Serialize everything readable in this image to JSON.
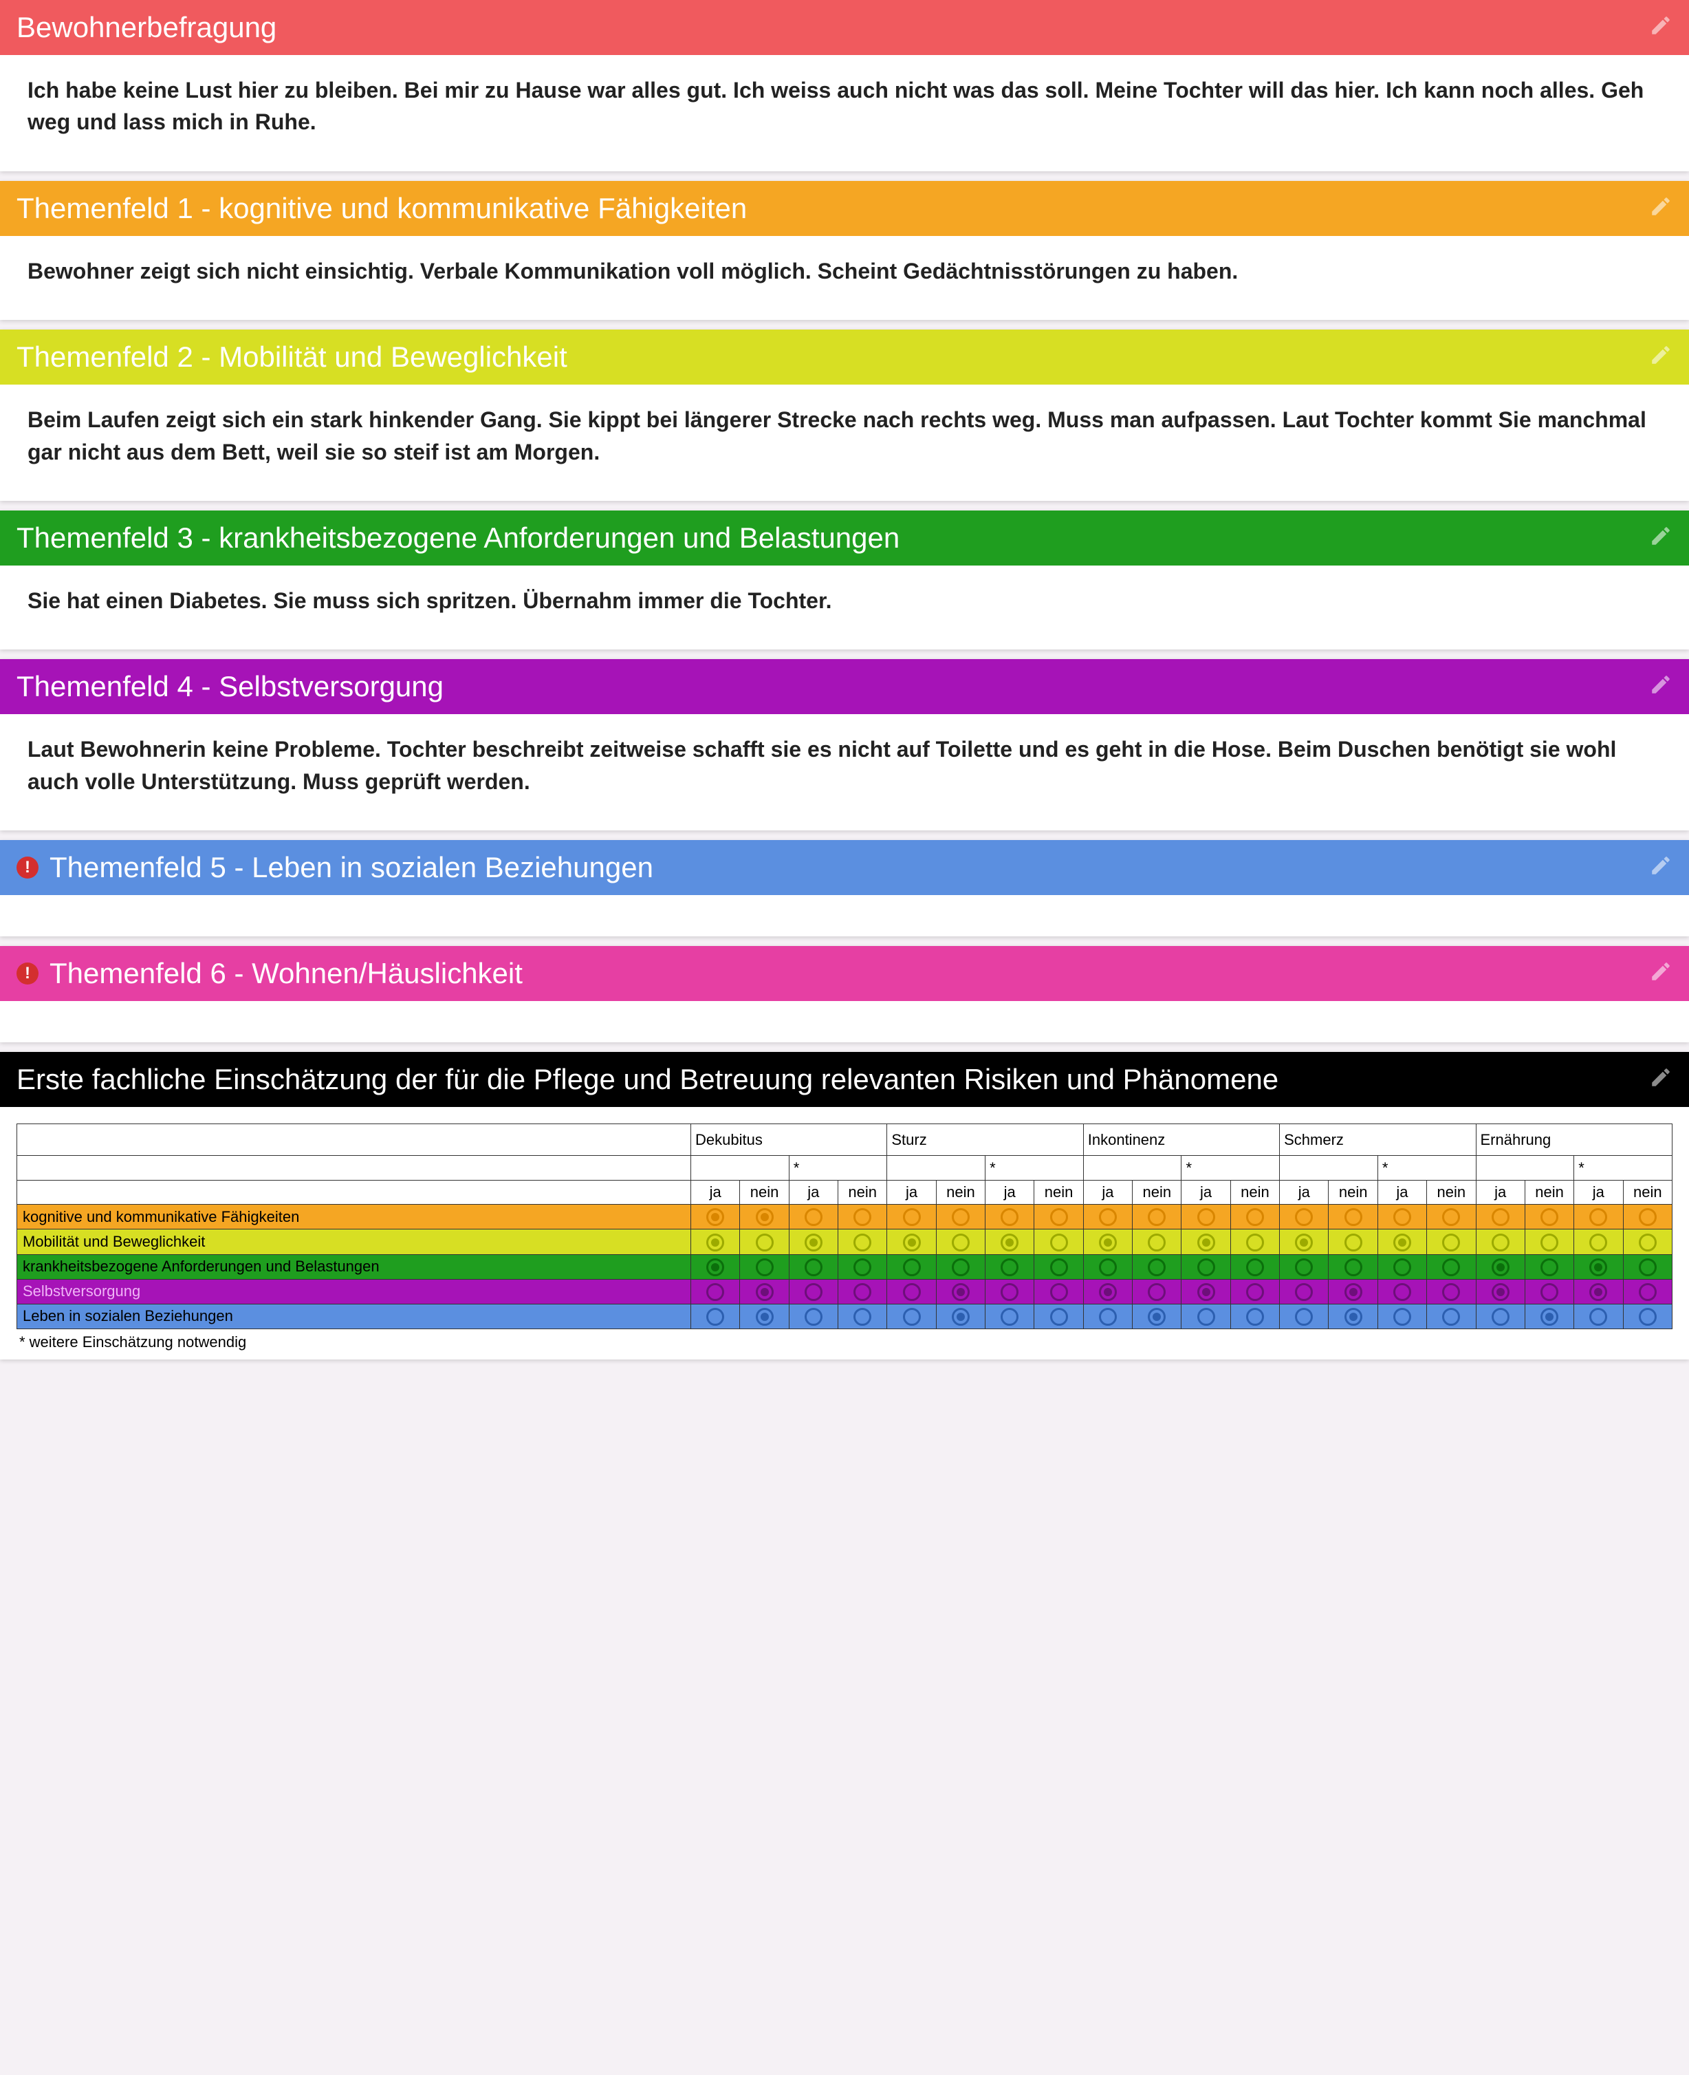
{
  "colors": {
    "page_bg": "#f5f1f5",
    "panel_bg": "#ffffff",
    "text": "#222222",
    "warn_badge": "#d32f2f",
    "edit_icon": "#ffffff"
  },
  "panels": [
    {
      "id": "survey",
      "title": "Bewohnerbefragung",
      "header_color": "#f05a5e",
      "has_warn": false,
      "body": "Ich habe keine Lust hier zu bleiben. Bei mir zu Hause war alles gut. Ich weiss auch nicht was das soll. Meine Tochter will das hier. Ich kann noch alles. Geh weg und lass mich in Ruhe."
    },
    {
      "id": "tf1",
      "title": "Themenfeld 1 - kognitive und kommunikative Fähigkeiten",
      "header_color": "#f5a623",
      "has_warn": false,
      "body": "Bewohner zeigt sich nicht einsichtig. Verbale Kommunikation voll möglich. Scheint Gedächtnisstörungen zu haben."
    },
    {
      "id": "tf2",
      "title": "Themenfeld 2 - Mobilität und Beweglichkeit",
      "header_color": "#d7df23",
      "has_warn": false,
      "body": "Beim Laufen zeigt sich ein stark hinkender Gang. Sie kippt bei längerer Strecke nach rechts weg. Muss man aufpassen. Laut Tochter kommt Sie manchmal gar nicht aus dem Bett, weil sie so steif ist am Morgen."
    },
    {
      "id": "tf3",
      "title": "Themenfeld 3 - krankheitsbezogene Anforderungen und Belastungen",
      "header_color": "#1f9e1f",
      "has_warn": false,
      "body": "Sie hat einen Diabetes. Sie muss sich spritzen. Übernahm immer die Tochter."
    },
    {
      "id": "tf4",
      "title": "Themenfeld 4 - Selbstversorgung",
      "header_color": "#a613b7",
      "has_warn": false,
      "body": "Laut Bewohnerin keine Probleme. Tochter beschreibt zeitweise schafft sie es nicht auf Toilette und es geht in die Hose. Beim Duschen benötigt sie wohl auch volle Unterstützung. Muss geprüft werden."
    },
    {
      "id": "tf5",
      "title": "Themenfeld 5 - Leben in sozialen Beziehungen",
      "header_color": "#5b8fe0",
      "has_warn": true,
      "body": ""
    },
    {
      "id": "tf6",
      "title": "Themenfeld 6 - Wohnen/Häuslichkeit",
      "header_color": "#e63fa3",
      "has_warn": true,
      "body": ""
    }
  ],
  "matrix_panel": {
    "title": "Erste fachliche Einschätzung der für die Pflege und Betreuung relevanten Risiken und Phänomene",
    "header_color": "#000000"
  },
  "matrix": {
    "groups": [
      "Dekubitus",
      "Sturz",
      "Inkontinenz",
      "Schmerz",
      "Ernährung"
    ],
    "sub_labels": [
      "",
      "*"
    ],
    "jn_labels": [
      "ja",
      "nein"
    ],
    "footnote": "* weitere Einschätzung notwendig",
    "rows": [
      {
        "label": "kognitive und kommunikative Fähigkeiten",
        "row_color": "#f5a623",
        "radio_color": "#d98600",
        "text_color": "#000000",
        "selections": [
          0,
          1,
          null,
          null,
          null,
          null,
          null,
          null,
          null,
          null,
          null,
          null,
          null,
          null,
          null,
          null,
          null,
          null,
          null,
          null
        ]
      },
      {
        "label": "Mobilität und Beweglichkeit",
        "row_color": "#d7df23",
        "radio_color": "#9caa00",
        "text_color": "#000000",
        "selections": [
          0,
          null,
          0,
          null,
          0,
          null,
          0,
          null,
          0,
          null,
          0,
          null,
          0,
          null,
          0,
          null,
          null,
          null,
          null,
          null
        ]
      },
      {
        "label": "krankheitsbezogene Anforderungen und Belastungen",
        "row_color": "#1f9e1f",
        "radio_color": "#0b6f0b",
        "text_color": "#000000",
        "selections": [
          0,
          null,
          null,
          null,
          null,
          null,
          null,
          null,
          null,
          null,
          null,
          null,
          null,
          null,
          null,
          null,
          0,
          null,
          0,
          null
        ]
      },
      {
        "label": "Selbstversorgung",
        "row_color": "#a613b7",
        "radio_color": "#6d0f7a",
        "text_color": "#f0b3f7",
        "selections": [
          null,
          0,
          null,
          null,
          null,
          0,
          null,
          null,
          0,
          null,
          0,
          null,
          null,
          0,
          null,
          null,
          0,
          null,
          0,
          null
        ]
      },
      {
        "label": "Leben in sozialen Beziehungen",
        "row_color": "#5b8fe0",
        "radio_color": "#2c5fb0",
        "text_color": "#000000",
        "selections": [
          null,
          0,
          null,
          null,
          null,
          0,
          null,
          null,
          null,
          0,
          null,
          null,
          null,
          0,
          null,
          null,
          null,
          0,
          null,
          null
        ]
      }
    ]
  }
}
